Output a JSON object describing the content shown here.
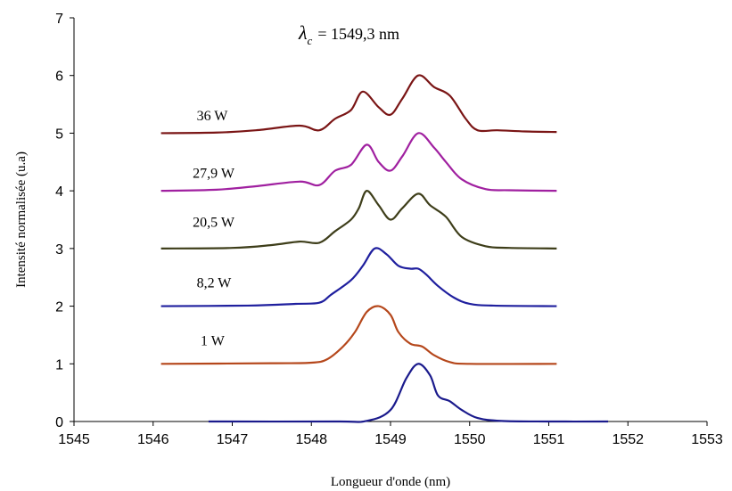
{
  "chart_data": {
    "type": "line",
    "title": "",
    "annotation": {
      "symbol": "λ",
      "subscript": "c",
      "text": "= 1549,3 nm"
    },
    "xlabel": "Longueur d'onde (nm)",
    "ylabel": "Intensité normalisée (u.a)",
    "xlim": [
      1545,
      1553
    ],
    "ylim": [
      0,
      7
    ],
    "xticks": [
      "1545",
      "1546",
      "1547",
      "1548",
      "1549",
      "1550",
      "1551",
      "1552",
      "1553"
    ],
    "yticks": [
      "0",
      "1",
      "2",
      "3",
      "4",
      "5",
      "6",
      "7"
    ],
    "grid": false,
    "series": [
      {
        "label": "",
        "color": "#1a1a8c",
        "points": [
          [
            1546.7,
            0
          ],
          [
            1548.3,
            0
          ],
          [
            1548.7,
            0.01
          ],
          [
            1549.0,
            0.2
          ],
          [
            1549.2,
            0.75
          ],
          [
            1549.35,
            1.0
          ],
          [
            1549.5,
            0.8
          ],
          [
            1549.6,
            0.45
          ],
          [
            1549.75,
            0.35
          ],
          [
            1549.9,
            0.2
          ],
          [
            1550.1,
            0.06
          ],
          [
            1550.4,
            0.01
          ],
          [
            1551.0,
            0
          ],
          [
            1551.75,
            0
          ]
        ]
      },
      {
        "label": "1 W",
        "color": "#b5471b",
        "points": [
          [
            1546.1,
            1
          ],
          [
            1547.5,
            1.01
          ],
          [
            1548.0,
            1.02
          ],
          [
            1548.2,
            1.08
          ],
          [
            1548.4,
            1.3
          ],
          [
            1548.55,
            1.55
          ],
          [
            1548.7,
            1.9
          ],
          [
            1548.85,
            2.0
          ],
          [
            1549.0,
            1.85
          ],
          [
            1549.1,
            1.55
          ],
          [
            1549.25,
            1.35
          ],
          [
            1549.4,
            1.3
          ],
          [
            1549.55,
            1.15
          ],
          [
            1549.75,
            1.03
          ],
          [
            1550.0,
            1.0
          ],
          [
            1551.1,
            1.0
          ]
        ]
      },
      {
        "label": "8,2 W",
        "color": "#1f1f9e",
        "points": [
          [
            1546.1,
            2
          ],
          [
            1547.2,
            2.01
          ],
          [
            1547.8,
            2.04
          ],
          [
            1548.1,
            2.06
          ],
          [
            1548.25,
            2.2
          ],
          [
            1548.5,
            2.45
          ],
          [
            1548.65,
            2.7
          ],
          [
            1548.8,
            3.0
          ],
          [
            1548.95,
            2.9
          ],
          [
            1549.1,
            2.7
          ],
          [
            1549.25,
            2.65
          ],
          [
            1549.35,
            2.65
          ],
          [
            1549.45,
            2.55
          ],
          [
            1549.6,
            2.35
          ],
          [
            1549.8,
            2.15
          ],
          [
            1550.0,
            2.04
          ],
          [
            1550.3,
            2.01
          ],
          [
            1551.1,
            2.0
          ]
        ]
      },
      {
        "label": "20,5 W",
        "color": "#3e3e1a",
        "points": [
          [
            1546.1,
            3
          ],
          [
            1547.0,
            3.01
          ],
          [
            1547.5,
            3.06
          ],
          [
            1547.85,
            3.12
          ],
          [
            1548.1,
            3.1
          ],
          [
            1548.3,
            3.3
          ],
          [
            1548.5,
            3.5
          ],
          [
            1548.6,
            3.7
          ],
          [
            1548.7,
            4.0
          ],
          [
            1548.85,
            3.75
          ],
          [
            1549.0,
            3.5
          ],
          [
            1549.15,
            3.7
          ],
          [
            1549.35,
            3.95
          ],
          [
            1549.5,
            3.75
          ],
          [
            1549.7,
            3.55
          ],
          [
            1549.9,
            3.2
          ],
          [
            1550.2,
            3.04
          ],
          [
            1550.5,
            3.01
          ],
          [
            1551.1,
            3.0
          ]
        ]
      },
      {
        "label": "27,9 W",
        "color": "#a020a0",
        "points": [
          [
            1546.1,
            4
          ],
          [
            1546.8,
            4.02
          ],
          [
            1547.3,
            4.08
          ],
          [
            1547.85,
            4.16
          ],
          [
            1548.1,
            4.1
          ],
          [
            1548.3,
            4.35
          ],
          [
            1548.5,
            4.45
          ],
          [
            1548.7,
            4.8
          ],
          [
            1548.85,
            4.5
          ],
          [
            1549.0,
            4.35
          ],
          [
            1549.15,
            4.6
          ],
          [
            1549.35,
            5.0
          ],
          [
            1549.55,
            4.75
          ],
          [
            1549.7,
            4.5
          ],
          [
            1549.9,
            4.2
          ],
          [
            1550.2,
            4.03
          ],
          [
            1550.5,
            4.01
          ],
          [
            1551.1,
            4.0
          ]
        ]
      },
      {
        "label": "36 W",
        "color": "#7a1515",
        "points": [
          [
            1546.1,
            5
          ],
          [
            1546.8,
            5.01
          ],
          [
            1547.3,
            5.05
          ],
          [
            1547.85,
            5.13
          ],
          [
            1548.1,
            5.05
          ],
          [
            1548.3,
            5.25
          ],
          [
            1548.5,
            5.4
          ],
          [
            1548.65,
            5.72
          ],
          [
            1548.85,
            5.45
          ],
          [
            1549.0,
            5.32
          ],
          [
            1549.15,
            5.6
          ],
          [
            1549.35,
            6.0
          ],
          [
            1549.55,
            5.8
          ],
          [
            1549.75,
            5.65
          ],
          [
            1549.95,
            5.25
          ],
          [
            1550.1,
            5.05
          ],
          [
            1550.35,
            5.05
          ],
          [
            1550.7,
            5.03
          ],
          [
            1551.1,
            5.02
          ]
        ]
      }
    ],
    "series_labels": [
      {
        "text": "1 W",
        "x": 1546.6,
        "y": 1.4
      },
      {
        "text": "8,2 W",
        "x": 1546.55,
        "y": 2.4
      },
      {
        "text": "20,5 W",
        "x": 1546.5,
        "y": 3.45
      },
      {
        "text": "27,9 W",
        "x": 1546.5,
        "y": 4.3
      },
      {
        "text": "36 W",
        "x": 1546.55,
        "y": 5.3
      }
    ]
  }
}
